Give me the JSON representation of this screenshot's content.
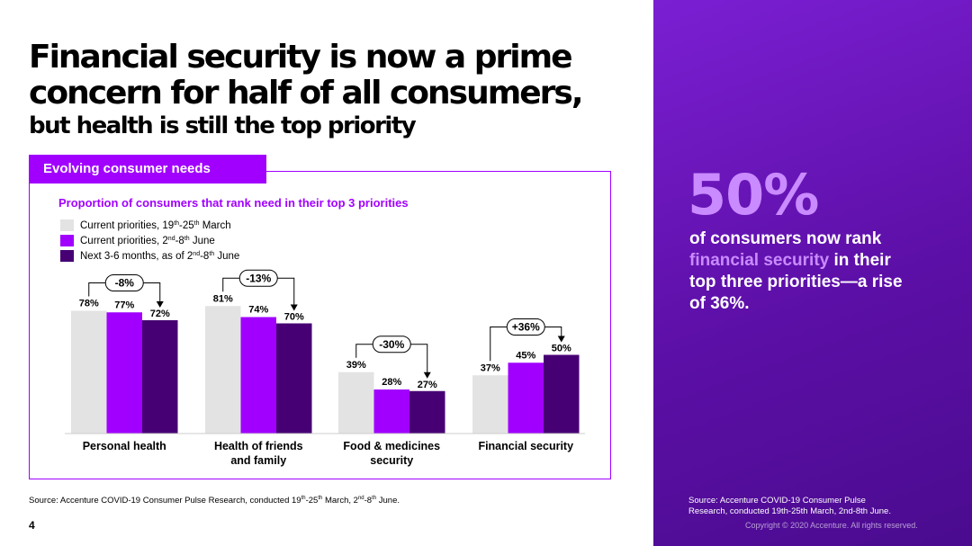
{
  "headline": {
    "line1": "Financial security is now a prime",
    "line2": "concern for half of all consumers,",
    "line3": "but health is still the top priority"
  },
  "panel_tab": "Evolving consumer needs",
  "chart_data": {
    "type": "bar",
    "title": "Proportion of consumers that rank need in their top 3 priorities",
    "categories": [
      [
        "Personal health"
      ],
      [
        "Health of friends",
        "and family"
      ],
      [
        "Food & medicines",
        "security"
      ],
      [
        "Financial security"
      ]
    ],
    "series": [
      {
        "name_parts": [
          "Current priorities, 19",
          "th",
          "-25",
          "th",
          " March"
        ],
        "values": [
          78,
          81,
          39,
          37
        ],
        "color": "#e3e3e3"
      },
      {
        "name_parts": [
          "Current priorities, 2",
          "nd",
          "-8",
          "th",
          " June"
        ],
        "values": [
          77,
          74,
          28,
          45
        ],
        "color": "#a100ff"
      },
      {
        "name_parts": [
          "Next 3-6 months, as of 2",
          "nd",
          "-8",
          "th",
          " June"
        ],
        "values": [
          72,
          70,
          27,
          50
        ],
        "color": "#460073"
      }
    ],
    "value_suffix": "%",
    "changes": [
      "-8%",
      "-13%",
      "-30%",
      "+36%"
    ],
    "ylim": [
      0,
      100
    ]
  },
  "highlight": {
    "stat": "50%",
    "text_before": "of consumers now rank ",
    "text_highlight": "financial security",
    "text_after": " in their top three priorities—a rise of 36%."
  },
  "source_left": {
    "parts": [
      "Source: Accenture COVID-19 Consumer Pulse Research, conducted 19",
      "th",
      "-25",
      "th",
      " March, 2",
      "nd",
      "-8",
      "th",
      " June."
    ]
  },
  "source_right": "Source: Accenture COVID-19 Consumer Pulse Research, conducted 19th-25th March, 2nd-8th June.",
  "copyright": "Copyright © 2020 Accenture. All rights reserved.",
  "page_number": "4"
}
